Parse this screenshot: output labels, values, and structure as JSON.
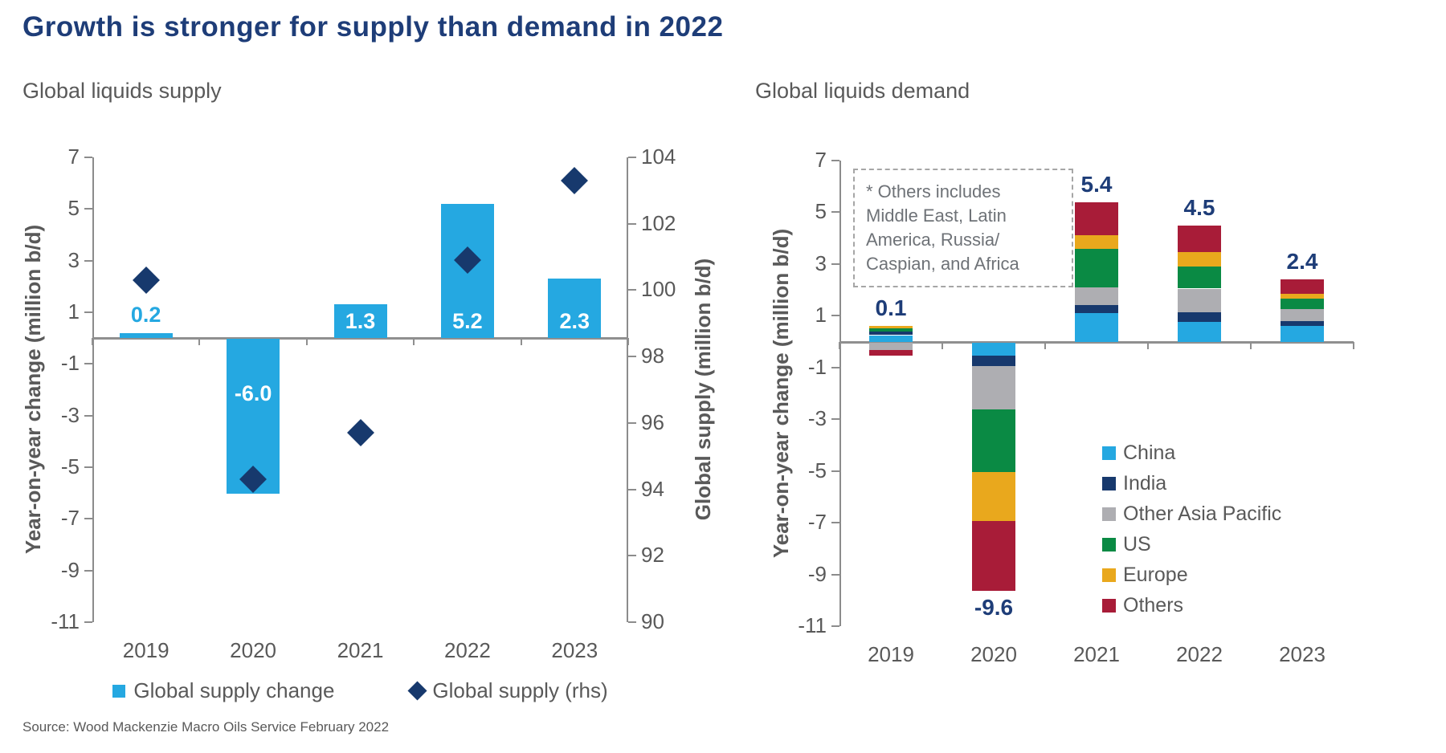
{
  "page": {
    "title": "Growth is stronger for supply than demand in 2022",
    "source": "Source: Wood Mackenzie Macro Oils Service February 2022"
  },
  "colors": {
    "title_navy": "#1e3d78",
    "china_light_blue": "#25a8e1",
    "india_navy": "#17396d",
    "other_asia_pacific_gray": "#aeaeb2",
    "us_green": "#0a8a44",
    "europe_yellow": "#e9a81d",
    "others_red": "#a81c38",
    "axis_gray": "#8c8c8c",
    "text_gray": "#595959"
  },
  "chart_data": [
    {
      "type": "bar",
      "title": "Global liquids supply",
      "categories": [
        "2019",
        "2020",
        "2021",
        "2022",
        "2023"
      ],
      "left_axis": {
        "label": "Year-on-year change (million b/d)",
        "min": -11,
        "max": 7,
        "step": 2
      },
      "right_axis": {
        "label": "Global supply (million b/d)",
        "min": 90,
        "max": 104,
        "step": 2
      },
      "series": [
        {
          "name": "Global supply change",
          "type": "bar",
          "axis": "left",
          "color": "#25a8e1",
          "values": [
            0.2,
            -6.0,
            1.3,
            5.2,
            2.3
          ],
          "labels": [
            "0.2",
            "-6.0",
            "1.3",
            "5.2",
            "2.3"
          ]
        },
        {
          "name": "Global supply (rhs)",
          "type": "scatter-diamond",
          "axis": "right",
          "color": "#17396d",
          "values": [
            100.3,
            94.3,
            95.7,
            100.9,
            103.3
          ]
        }
      ],
      "legend_position": "bottom"
    },
    {
      "type": "stacked-bar",
      "title": "Global liquids demand",
      "categories": [
        "2019",
        "2020",
        "2021",
        "2022",
        "2023"
      ],
      "left_axis": {
        "label": "Year-on-year change (million b/d)",
        "min": -11,
        "max": 7,
        "step": 2
      },
      "series": [
        {
          "name": "China",
          "color": "#25a8e1",
          "values": [
            0.25,
            -0.5,
            1.1,
            0.75,
            0.6
          ]
        },
        {
          "name": "India",
          "color": "#17396d",
          "values": [
            0.15,
            -0.4,
            0.3,
            0.4,
            0.2
          ]
        },
        {
          "name": "Other Asia Pacific",
          "color": "#aeaeb2",
          "values": [
            -0.3,
            -1.7,
            0.7,
            0.9,
            0.45
          ]
        },
        {
          "name": "US",
          "color": "#0a8a44",
          "values": [
            0.1,
            -2.4,
            1.5,
            0.85,
            0.4
          ]
        },
        {
          "name": "Europe",
          "color": "#e9a81d",
          "values": [
            0.1,
            -1.9,
            0.5,
            0.55,
            0.2
          ]
        },
        {
          "name": "Others",
          "color": "#a81c38",
          "values": [
            -0.2,
            -2.7,
            1.3,
            1.05,
            0.55
          ]
        }
      ],
      "totals": [
        0.1,
        -9.6,
        5.4,
        4.5,
        2.4
      ],
      "total_labels": [
        "0.1",
        "-9.6",
        "5.4",
        "4.5",
        "2.4"
      ],
      "annotation_lines": [
        "* Others includes",
        "Middle East, Latin",
        "America, Russia/",
        "Caspian, and Africa"
      ],
      "legend_position": "right-inside"
    }
  ]
}
